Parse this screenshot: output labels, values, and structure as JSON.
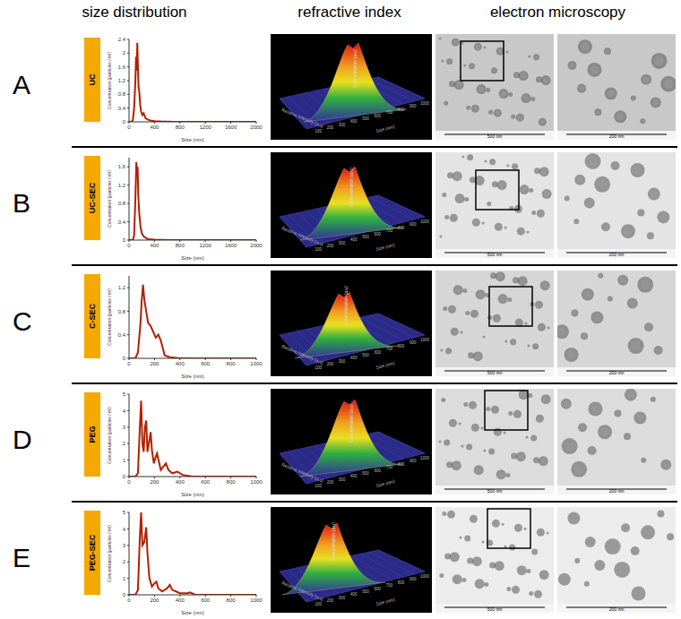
{
  "column_headers": [
    "size distribution",
    "refractive index",
    "electron microscopy"
  ],
  "panels": [
    "A",
    "B",
    "C",
    "D",
    "E"
  ],
  "chart_data": [
    {
      "type": "line",
      "title": "UC",
      "x_label": "Size (nm)",
      "y_label": "Concentration (particles / ml)",
      "color": "#b22000",
      "x": [
        0,
        40,
        60,
        80,
        100,
        110,
        120,
        130,
        140,
        150,
        160,
        175,
        190,
        210,
        230,
        260,
        300,
        350,
        400,
        500,
        700,
        1000,
        2000
      ],
      "values": [
        0,
        0,
        0.05,
        0.4,
        1.2,
        1.9,
        1.5,
        2.3,
        1.6,
        1.0,
        0.9,
        0.5,
        0.3,
        0.2,
        0.25,
        0.1,
        0.06,
        0.03,
        0.02,
        0.01,
        0,
        0,
        0
      ],
      "xlim": [
        0,
        2000
      ],
      "xticks": [
        0,
        400,
        800,
        1200,
        1600,
        2000
      ],
      "ylim": [
        0,
        2.4
      ],
      "yticks": [
        0,
        0.4,
        0.8,
        1.2,
        1.6,
        2,
        2.4
      ]
    },
    {
      "type": "line",
      "title": "UC-SEC",
      "x_label": "Size (nm)",
      "y_label": "Concentration (particles / ml)",
      "color": "#b22000",
      "x": [
        0,
        60,
        80,
        100,
        115,
        125,
        135,
        145,
        160,
        180,
        200,
        230,
        260,
        300,
        400,
        600,
        2000
      ],
      "values": [
        0,
        0,
        0.1,
        0.9,
        1.7,
        1.4,
        1.6,
        1.0,
        0.6,
        0.3,
        0.15,
        0.08,
        0.05,
        0.02,
        0.01,
        0,
        0
      ],
      "xlim": [
        0,
        2000
      ],
      "xticks": [
        0,
        400,
        800,
        1200,
        1600,
        2000
      ],
      "ylim": [
        0,
        1.8
      ],
      "yticks": [
        0,
        0.4,
        0.8,
        1.2,
        1.6
      ]
    },
    {
      "type": "line",
      "title": "C-SEC",
      "x_label": "Size (nm)",
      "y_label": "Concentration (particles / ml)",
      "color": "#b22000",
      "x": [
        0,
        50,
        70,
        90,
        100,
        110,
        120,
        135,
        150,
        170,
        190,
        210,
        230,
        250,
        280,
        320,
        400,
        1000
      ],
      "values": [
        0,
        0,
        0.1,
        0.6,
        1.0,
        1.25,
        1.0,
        0.8,
        0.6,
        0.55,
        0.45,
        0.35,
        0.4,
        0.3,
        0.05,
        0.02,
        0,
        0
      ],
      "xlim": [
        0,
        1000
      ],
      "xticks": [
        0,
        200,
        400,
        600,
        800,
        1000
      ],
      "ylim": [
        0,
        1.4
      ],
      "yticks": [
        0,
        0.4,
        0.8,
        1.2
      ]
    },
    {
      "type": "line",
      "title": "PEG",
      "x_label": "Size (nm)",
      "y_label": "Concentration (particles / ml)",
      "color": "#b22000",
      "x": [
        0,
        50,
        70,
        85,
        95,
        105,
        115,
        125,
        135,
        145,
        160,
        170,
        180,
        195,
        210,
        220,
        235,
        250,
        270,
        290,
        310,
        340,
        380,
        420,
        500,
        1000
      ],
      "values": [
        0,
        0,
        0.2,
        3.0,
        4.6,
        2.0,
        1.5,
        3.0,
        3.4,
        1.5,
        2.2,
        2.7,
        1.6,
        0.8,
        1.2,
        1.4,
        0.9,
        0.4,
        0.6,
        0.8,
        0.4,
        0.2,
        0.3,
        0.1,
        0,
        0
      ],
      "xlim": [
        0,
        1000
      ],
      "xticks": [
        0,
        200,
        400,
        600,
        800,
        1000
      ],
      "ylim": [
        0,
        5
      ],
      "yticks": [
        0,
        1,
        2,
        3,
        4,
        5
      ]
    },
    {
      "type": "line",
      "title": "PEG-SEC",
      "x_label": "Size (nm)",
      "y_label": "Concentration (particles / ml)",
      "color": "#b22000",
      "x": [
        0,
        50,
        70,
        85,
        95,
        105,
        120,
        135,
        145,
        160,
        180,
        200,
        215,
        230,
        260,
        300,
        320,
        340,
        400,
        460,
        480,
        520,
        1000
      ],
      "values": [
        0,
        0,
        0.3,
        3.5,
        5.0,
        3.0,
        3.2,
        4.1,
        2.5,
        1.0,
        0.5,
        0.7,
        0.8,
        0.4,
        0.2,
        0.4,
        0.6,
        0.3,
        0.1,
        0.1,
        0.15,
        0,
        0
      ],
      "xlim": [
        0,
        1000
      ],
      "xticks": [
        0,
        200,
        400,
        600,
        800,
        1000
      ],
      "ylim": [
        0,
        5
      ],
      "yticks": [
        0,
        1,
        2,
        3,
        4,
        5
      ]
    }
  ],
  "refractive_index": {
    "x_label": "Size (nm)",
    "y_label": "Relative Intensity (a.u)",
    "z_label": "Concentration (a.u)",
    "ticks": [
      100,
      200,
      300,
      400,
      500,
      600,
      700,
      800,
      900,
      1000
    ]
  },
  "electron_microscopy": {
    "scale_bars": [
      "500 nm",
      "200 nm"
    ]
  }
}
